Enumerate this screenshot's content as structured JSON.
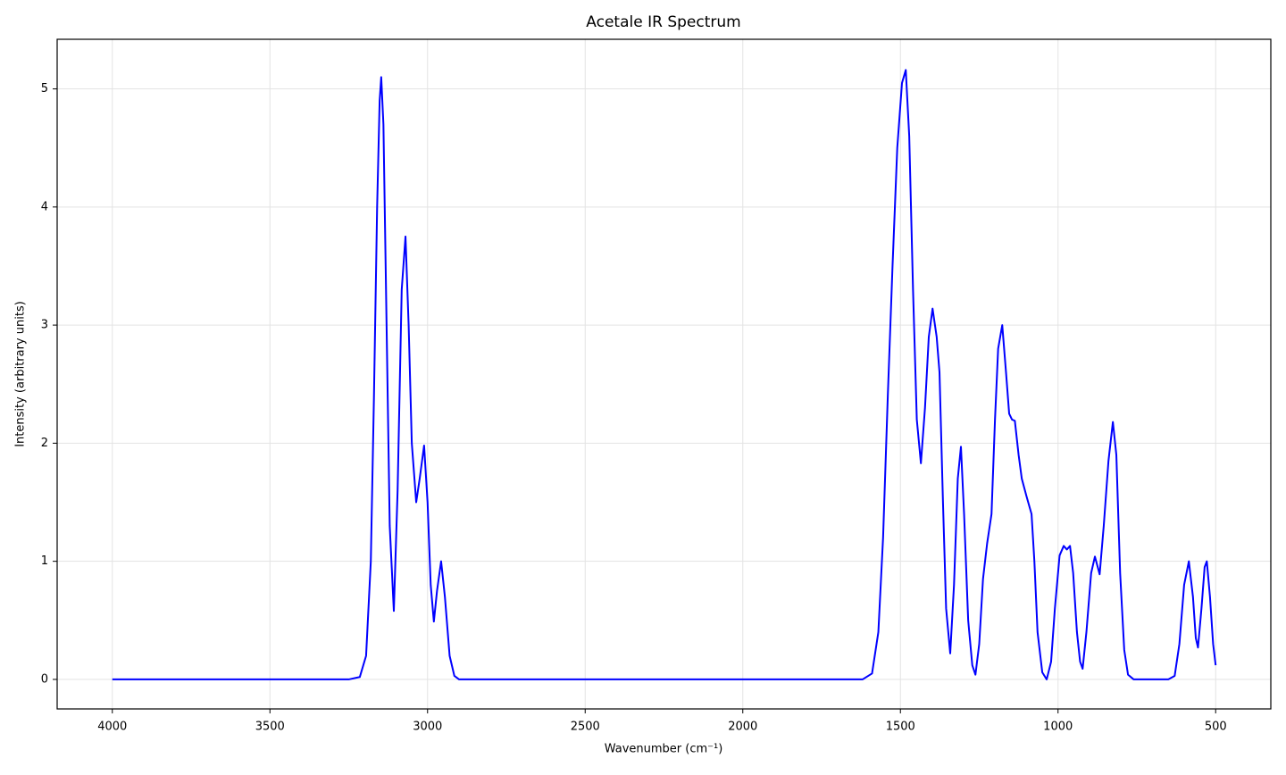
{
  "chart_data": {
    "type": "line",
    "title": "Acetale IR Spectrum",
    "x_label": "Wavenumber (cm⁻¹)",
    "y_label": "Intensity (arbitrary units)",
    "x": [
      4000,
      3500,
      3250,
      3215,
      3195,
      3180,
      3170,
      3160,
      3152,
      3147,
      3140,
      3130,
      3120,
      3107,
      3095,
      3082,
      3070,
      3060,
      3050,
      3036,
      3025,
      3011,
      3000,
      2990,
      2980,
      2970,
      2957,
      2945,
      2930,
      2915,
      2900,
      2500,
      2000,
      1620,
      1590,
      1570,
      1555,
      1540,
      1525,
      1510,
      1495,
      1483,
      1472,
      1460,
      1448,
      1435,
      1422,
      1410,
      1398,
      1385,
      1376,
      1365,
      1355,
      1342,
      1330,
      1318,
      1308,
      1298,
      1285,
      1272,
      1262,
      1250,
      1238,
      1225,
      1211,
      1200,
      1190,
      1177,
      1165,
      1155,
      1146,
      1137,
      1125,
      1115,
      1100,
      1084,
      1075,
      1065,
      1050,
      1036,
      1022,
      1010,
      995,
      982,
      972,
      962,
      952,
      940,
      930,
      922,
      910,
      895,
      883,
      868,
      855,
      840,
      826,
      815,
      803,
      790,
      778,
      760,
      650,
      630,
      615,
      600,
      585,
      572,
      563,
      556,
      545,
      535,
      528,
      518,
      508,
      500
    ],
    "values": [
      0,
      0,
      0,
      0.02,
      0.2,
      1.0,
      2.4,
      4.0,
      4.9,
      5.1,
      4.7,
      3.0,
      1.3,
      0.58,
      1.6,
      3.3,
      3.75,
      3.0,
      2.0,
      1.5,
      1.7,
      1.98,
      1.5,
      0.8,
      0.49,
      0.75,
      1.0,
      0.7,
      0.2,
      0.03,
      0,
      0,
      0,
      0,
      0.05,
      0.4,
      1.2,
      2.4,
      3.5,
      4.5,
      5.05,
      5.16,
      4.6,
      3.3,
      2.2,
      1.83,
      2.3,
      2.9,
      3.14,
      2.9,
      2.6,
      1.5,
      0.6,
      0.22,
      0.8,
      1.7,
      1.97,
      1.4,
      0.5,
      0.12,
      0.04,
      0.3,
      0.85,
      1.15,
      1.4,
      2.2,
      2.8,
      3.0,
      2.6,
      2.25,
      2.2,
      2.19,
      1.9,
      1.7,
      1.55,
      1.4,
      1.0,
      0.4,
      0.06,
      0.0,
      0.15,
      0.6,
      1.05,
      1.13,
      1.1,
      1.13,
      0.9,
      0.4,
      0.15,
      0.09,
      0.4,
      0.9,
      1.04,
      0.89,
      1.3,
      1.85,
      2.18,
      1.9,
      0.9,
      0.25,
      0.04,
      0,
      0,
      0.03,
      0.3,
      0.8,
      1.0,
      0.7,
      0.35,
      0.27,
      0.6,
      0.95,
      1.0,
      0.7,
      0.3,
      0.12
    ],
    "color": "#0000ff",
    "xlim": [
      4175,
      325
    ],
    "ylim": [
      -0.25,
      5.42
    ],
    "xticks": [
      4000,
      3500,
      3000,
      2500,
      2000,
      1500,
      1000,
      500
    ],
    "yticks": [
      0,
      1,
      2,
      3,
      4,
      5
    ],
    "grid": true
  }
}
